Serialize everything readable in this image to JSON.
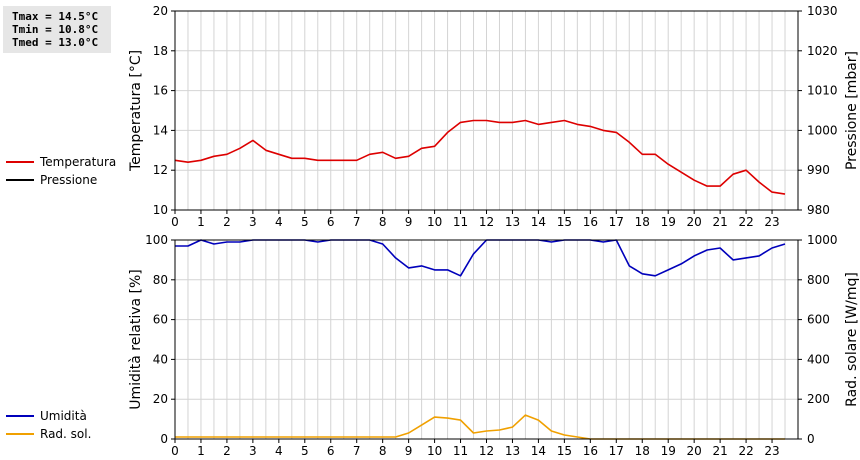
{
  "stats": {
    "tmax": "Tmax = 14.5°C",
    "tmin": "Tmin = 10.8°C",
    "tmed": "Tmed = 13.0°C"
  },
  "colors": {
    "temperature": "#dd0000",
    "pressure": "#000000",
    "humidity": "#0000bb",
    "radiation": "#f0a000",
    "grid": "#d4d4d4",
    "frame": "#000000"
  },
  "chart_data": [
    {
      "type": "line",
      "xlim": [
        0,
        24
      ],
      "xticks": [
        "0",
        "1",
        "2",
        "3",
        "4",
        "5",
        "6",
        "7",
        "8",
        "9",
        "10",
        "11",
        "12",
        "13",
        "14",
        "15",
        "16",
        "17",
        "18",
        "19",
        "20",
        "21",
        "22",
        "23"
      ],
      "ylabel": "Temperatura [°C]",
      "ylim": [
        10,
        20
      ],
      "yticks": [
        "10",
        "12",
        "14",
        "16",
        "18",
        "20"
      ],
      "y2label": "Pressione [mbar]",
      "y2lim": [
        980,
        1030
      ],
      "y2ticks": [
        "980",
        "990",
        "1000",
        "1010",
        "1020",
        "1030"
      ],
      "grid": true,
      "legend_position": "left",
      "series": [
        {
          "name": "Temperatura",
          "axis": "left",
          "x": [
            0,
            0.5,
            1,
            1.5,
            2,
            2.5,
            3,
            3.5,
            4,
            4.5,
            5,
            5.5,
            6,
            6.5,
            7,
            7.5,
            8,
            8.5,
            9,
            9.5,
            10,
            10.5,
            11,
            11.5,
            12,
            12.5,
            13,
            13.5,
            14,
            14.5,
            15,
            15.5,
            16,
            16.5,
            17,
            17.5,
            18,
            18.5,
            19,
            19.5,
            20,
            20.5,
            21,
            21.5,
            22,
            22.5,
            23,
            23.5
          ],
          "values": [
            12.5,
            12.4,
            12.5,
            12.7,
            12.8,
            13.1,
            13.5,
            13.0,
            12.8,
            12.6,
            12.6,
            12.5,
            12.5,
            12.5,
            12.5,
            12.8,
            12.9,
            12.6,
            12.7,
            13.1,
            13.2,
            13.9,
            14.4,
            14.5,
            14.5,
            14.4,
            14.4,
            14.5,
            14.3,
            14.4,
            14.5,
            14.3,
            14.2,
            14.0,
            13.9,
            13.4,
            12.8,
            12.8,
            12.3,
            11.9,
            11.5,
            11.2,
            11.2,
            11.8,
            12.0,
            11.4,
            10.9,
            10.8
          ]
        },
        {
          "name": "Pressione",
          "axis": "right",
          "x": [],
          "values": []
        }
      ]
    },
    {
      "type": "line",
      "xlim": [
        0,
        24
      ],
      "xticks": [
        "0",
        "1",
        "2",
        "3",
        "4",
        "5",
        "6",
        "7",
        "8",
        "9",
        "10",
        "11",
        "12",
        "13",
        "14",
        "15",
        "16",
        "17",
        "18",
        "19",
        "20",
        "21",
        "22",
        "23"
      ],
      "ylabel": "Umidità relativa [%]",
      "ylim": [
        0,
        100
      ],
      "yticks": [
        "0",
        "20",
        "40",
        "60",
        "80",
        "100"
      ],
      "y2label": "Rad. solare [W/mq]",
      "y2lim": [
        0,
        1000
      ],
      "y2ticks": [
        "0",
        "200",
        "400",
        "600",
        "800",
        "1000"
      ],
      "grid": true,
      "legend_position": "left",
      "series": [
        {
          "name": "Umidità",
          "axis": "left",
          "x": [
            0,
            0.5,
            1,
            1.5,
            2,
            2.5,
            3,
            3.5,
            4,
            4.5,
            5,
            5.5,
            6,
            6.5,
            7,
            7.5,
            8,
            8.5,
            9,
            9.5,
            10,
            10.5,
            11,
            11.5,
            12,
            12.5,
            13,
            13.5,
            14,
            14.5,
            15,
            15.5,
            16,
            16.5,
            17,
            17.5,
            18,
            18.5,
            19,
            19.5,
            20,
            20.5,
            21,
            21.5,
            22,
            22.5,
            23,
            23.5
          ],
          "values": [
            97,
            97,
            100,
            98,
            99,
            99,
            100,
            100,
            100,
            100,
            100,
            99,
            100,
            100,
            100,
            100,
            98,
            91,
            86,
            87,
            85,
            85,
            82,
            93,
            100,
            100,
            100,
            100,
            100,
            99,
            100,
            100,
            100,
            99,
            100,
            87,
            83,
            82,
            85,
            88,
            92,
            95,
            96,
            90,
            91,
            92,
            96,
            98
          ]
        },
        {
          "name": "Rad. sol.",
          "axis": "right",
          "x": [
            0,
            0.5,
            1,
            1.5,
            2,
            2.5,
            3,
            3.5,
            4,
            4.5,
            5,
            5.5,
            6,
            6.5,
            7,
            7.5,
            8,
            8.5,
            9,
            9.5,
            10,
            10.5,
            11,
            11.5,
            12,
            12.5,
            13,
            13.5,
            14,
            14.5,
            15,
            15.5,
            16,
            16.5,
            17,
            17.5,
            18,
            18.5,
            19,
            19.5,
            20,
            20.5,
            21,
            21.5,
            22,
            22.5,
            23,
            23.5
          ],
          "values": [
            10,
            10,
            10,
            10,
            10,
            10,
            10,
            10,
            10,
            10,
            10,
            10,
            10,
            10,
            10,
            10,
            10,
            10,
            30,
            70,
            110,
            105,
            95,
            30,
            40,
            45,
            60,
            120,
            95,
            40,
            20,
            10,
            0,
            0,
            0,
            0,
            0,
            0,
            0,
            0,
            0,
            0,
            0,
            0,
            0,
            0,
            0,
            0
          ]
        }
      ]
    }
  ]
}
